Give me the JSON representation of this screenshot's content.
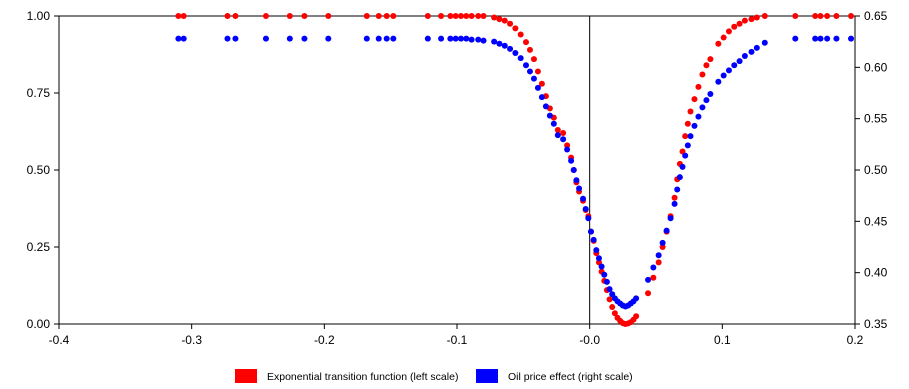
{
  "chart_data": {
    "type": "scatter",
    "title": "",
    "xlabel": "",
    "ylabel_left": "",
    "ylabel_right": "",
    "xlim": [
      -0.4,
      0.2
    ],
    "ylim_left": [
      0.0,
      1.0
    ],
    "ylim_right": [
      0.35,
      0.65
    ],
    "x_ticks": [
      -0.4,
      -0.3,
      -0.2,
      -0.1,
      0.0,
      0.1,
      0.2
    ],
    "x_tick_labels": [
      "-0.4",
      "-0.3",
      "-0.2",
      "-0.1",
      "-0.0",
      "0.1",
      "0.2"
    ],
    "y_left_ticks": [
      0.0,
      0.25,
      0.5,
      0.75,
      1.0
    ],
    "y_left_tick_labels": [
      "0.00",
      "0.25",
      "0.50",
      "0.75",
      "1.00"
    ],
    "y_right_ticks": [
      0.35,
      0.4,
      0.45,
      0.5,
      0.55,
      0.6,
      0.65
    ],
    "y_right_tick_labels": [
      "0.35",
      "0.40",
      "0.45",
      "0.50",
      "0.55",
      "0.60",
      "0.65"
    ],
    "grid": false,
    "vertical_reference_line_x": 0.0,
    "legend_position": "bottom",
    "series": [
      {
        "name": "Exponential transition function (left scale)",
        "axis": "left",
        "color": "#ff0000",
        "points": [
          [
            -0.31,
            1.0
          ],
          [
            -0.306,
            1.0
          ],
          [
            -0.273,
            1.0
          ],
          [
            -0.267,
            1.0
          ],
          [
            -0.244,
            1.0
          ],
          [
            -0.226,
            1.0
          ],
          [
            -0.215,
            1.0
          ],
          [
            -0.197,
            1.0
          ],
          [
            -0.168,
            1.0
          ],
          [
            -0.159,
            1.0
          ],
          [
            -0.153,
            1.0
          ],
          [
            -0.148,
            1.0
          ],
          [
            -0.122,
            1.0
          ],
          [
            -0.112,
            1.0
          ],
          [
            -0.105,
            1.0
          ],
          [
            -0.101,
            1.0
          ],
          [
            -0.097,
            1.0
          ],
          [
            -0.093,
            1.0
          ],
          [
            -0.089,
            1.0
          ],
          [
            -0.084,
            1.0
          ],
          [
            -0.08,
            1.0
          ],
          [
            -0.072,
            0.995
          ],
          [
            -0.068,
            0.99
          ],
          [
            -0.064,
            0.985
          ],
          [
            -0.06,
            0.975
          ],
          [
            -0.056,
            0.96
          ],
          [
            -0.052,
            0.94
          ],
          [
            -0.048,
            0.915
          ],
          [
            -0.045,
            0.89
          ],
          [
            -0.042,
            0.86
          ],
          [
            -0.039,
            0.82
          ],
          [
            -0.036,
            0.78
          ],
          [
            -0.033,
            0.74
          ],
          [
            -0.03,
            0.7
          ],
          [
            -0.027,
            0.67
          ],
          [
            -0.024,
            0.63
          ],
          [
            -0.02,
            0.62
          ],
          [
            -0.017,
            0.58
          ],
          [
            -0.014,
            0.54
          ],
          [
            -0.012,
            0.5
          ],
          [
            -0.01,
            0.46
          ],
          [
            -0.008,
            0.43
          ],
          [
            -0.005,
            0.4
          ],
          [
            -0.003,
            0.37
          ],
          [
            -0.001,
            0.35
          ],
          [
            0.001,
            0.3
          ],
          [
            0.003,
            0.27
          ],
          [
            0.005,
            0.23
          ],
          [
            0.007,
            0.2
          ],
          [
            0.009,
            0.17
          ],
          [
            0.011,
            0.14
          ],
          [
            0.013,
            0.11
          ],
          [
            0.015,
            0.08
          ],
          [
            0.017,
            0.055
          ],
          [
            0.019,
            0.035
          ],
          [
            0.021,
            0.02
          ],
          [
            0.023,
            0.01
          ],
          [
            0.025,
            0.003
          ],
          [
            0.027,
            0.0
          ],
          [
            0.029,
            0.002
          ],
          [
            0.031,
            0.006
          ],
          [
            0.033,
            0.014
          ],
          [
            0.035,
            0.025
          ],
          [
            0.044,
            0.1
          ],
          [
            0.048,
            0.15
          ],
          [
            0.052,
            0.2
          ],
          [
            0.055,
            0.25
          ],
          [
            0.058,
            0.3
          ],
          [
            0.061,
            0.35
          ],
          [
            0.064,
            0.41
          ],
          [
            0.066,
            0.47
          ],
          [
            0.068,
            0.52
          ],
          [
            0.07,
            0.56
          ],
          [
            0.072,
            0.61
          ],
          [
            0.074,
            0.65
          ],
          [
            0.076,
            0.69
          ],
          [
            0.079,
            0.73
          ],
          [
            0.082,
            0.77
          ],
          [
            0.085,
            0.81
          ],
          [
            0.088,
            0.84
          ],
          [
            0.091,
            0.86
          ],
          [
            0.097,
            0.91
          ],
          [
            0.101,
            0.93
          ],
          [
            0.105,
            0.95
          ],
          [
            0.109,
            0.965
          ],
          [
            0.113,
            0.975
          ],
          [
            0.117,
            0.985
          ],
          [
            0.122,
            0.99
          ],
          [
            0.126,
            0.995
          ],
          [
            0.132,
            1.0
          ],
          [
            0.155,
            1.0
          ],
          [
            0.17,
            1.0
          ],
          [
            0.174,
            1.0
          ],
          [
            0.179,
            1.0
          ],
          [
            0.186,
            1.0
          ],
          [
            0.197,
            1.0
          ]
        ]
      },
      {
        "name": "Oil price effect (right scale)",
        "axis": "right",
        "color": "#0000ff",
        "points": [
          [
            -0.31,
            0.628
          ],
          [
            -0.306,
            0.628
          ],
          [
            -0.273,
            0.628
          ],
          [
            -0.267,
            0.628
          ],
          [
            -0.244,
            0.628
          ],
          [
            -0.226,
            0.628
          ],
          [
            -0.215,
            0.628
          ],
          [
            -0.197,
            0.628
          ],
          [
            -0.168,
            0.628
          ],
          [
            -0.159,
            0.628
          ],
          [
            -0.153,
            0.628
          ],
          [
            -0.148,
            0.628
          ],
          [
            -0.122,
            0.628
          ],
          [
            -0.112,
            0.628
          ],
          [
            -0.105,
            0.628
          ],
          [
            -0.101,
            0.628
          ],
          [
            -0.097,
            0.628
          ],
          [
            -0.093,
            0.628
          ],
          [
            -0.089,
            0.627
          ],
          [
            -0.084,
            0.627
          ],
          [
            -0.08,
            0.626
          ],
          [
            -0.072,
            0.625
          ],
          [
            -0.068,
            0.623
          ],
          [
            -0.064,
            0.621
          ],
          [
            -0.06,
            0.618
          ],
          [
            -0.056,
            0.614
          ],
          [
            -0.052,
            0.609
          ],
          [
            -0.048,
            0.602
          ],
          [
            -0.045,
            0.596
          ],
          [
            -0.042,
            0.589
          ],
          [
            -0.039,
            0.58
          ],
          [
            -0.036,
            0.571
          ],
          [
            -0.033,
            0.562
          ],
          [
            -0.03,
            0.553
          ],
          [
            -0.027,
            0.545
          ],
          [
            -0.024,
            0.534
          ],
          [
            -0.02,
            0.53
          ],
          [
            -0.017,
            0.52
          ],
          [
            -0.014,
            0.509
          ],
          [
            -0.012,
            0.5
          ],
          [
            -0.01,
            0.49
          ],
          [
            -0.008,
            0.482
          ],
          [
            -0.005,
            0.472
          ],
          [
            -0.003,
            0.462
          ],
          [
            -0.001,
            0.453
          ],
          [
            0.001,
            0.44
          ],
          [
            0.003,
            0.432
          ],
          [
            0.005,
            0.422
          ],
          [
            0.007,
            0.414
          ],
          [
            0.009,
            0.406
          ],
          [
            0.011,
            0.398
          ],
          [
            0.013,
            0.391
          ],
          [
            0.015,
            0.384
          ],
          [
            0.017,
            0.379
          ],
          [
            0.019,
            0.375
          ],
          [
            0.021,
            0.372
          ],
          [
            0.023,
            0.37
          ],
          [
            0.025,
            0.368
          ],
          [
            0.027,
            0.367
          ],
          [
            0.029,
            0.368
          ],
          [
            0.031,
            0.37
          ],
          [
            0.033,
            0.372
          ],
          [
            0.035,
            0.375
          ],
          [
            0.044,
            0.393
          ],
          [
            0.048,
            0.405
          ],
          [
            0.052,
            0.417
          ],
          [
            0.055,
            0.429
          ],
          [
            0.058,
            0.441
          ],
          [
            0.061,
            0.453
          ],
          [
            0.064,
            0.467
          ],
          [
            0.066,
            0.481
          ],
          [
            0.068,
            0.493
          ],
          [
            0.07,
            0.503
          ],
          [
            0.072,
            0.514
          ],
          [
            0.074,
            0.524
          ],
          [
            0.076,
            0.533
          ],
          [
            0.079,
            0.543
          ],
          [
            0.082,
            0.552
          ],
          [
            0.085,
            0.561
          ],
          [
            0.088,
            0.568
          ],
          [
            0.091,
            0.574
          ],
          [
            0.097,
            0.586
          ],
          [
            0.101,
            0.592
          ],
          [
            0.105,
            0.597
          ],
          [
            0.109,
            0.602
          ],
          [
            0.113,
            0.606
          ],
          [
            0.117,
            0.611
          ],
          [
            0.122,
            0.615
          ],
          [
            0.126,
            0.619
          ],
          [
            0.132,
            0.624
          ],
          [
            0.155,
            0.628
          ],
          [
            0.17,
            0.628
          ],
          [
            0.174,
            0.628
          ],
          [
            0.179,
            0.628
          ],
          [
            0.186,
            0.628
          ],
          [
            0.197,
            0.628
          ]
        ]
      }
    ]
  }
}
